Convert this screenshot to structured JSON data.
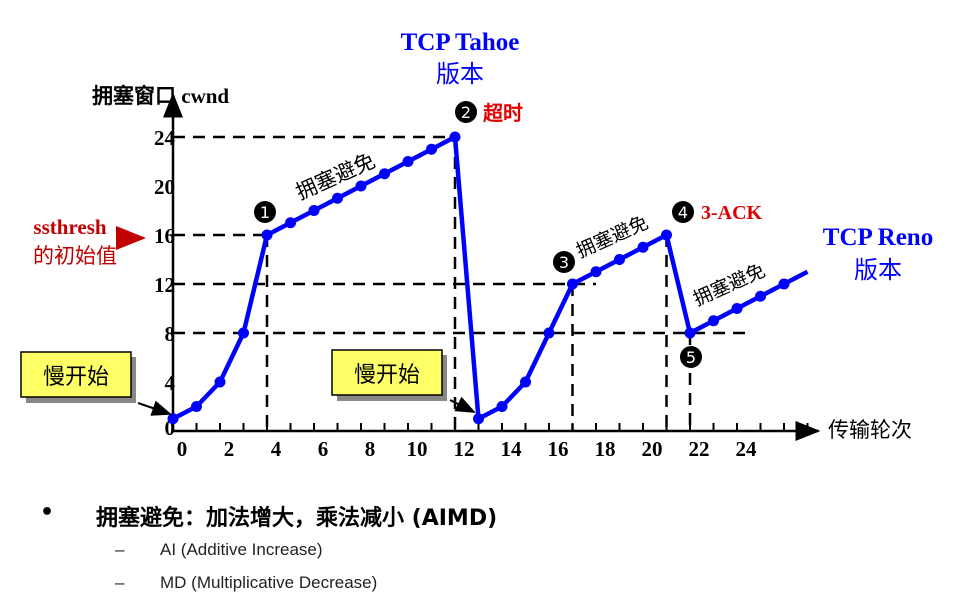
{
  "chart_data": {
    "type": "line",
    "ylabel": "拥塞窗口 cwnd",
    "xlabel": "传输轮次",
    "x_ticks": [
      0,
      2,
      4,
      6,
      8,
      10,
      12,
      14,
      16,
      18,
      20,
      22,
      24
    ],
    "y_ticks": [
      0,
      4,
      8,
      12,
      16,
      20,
      24
    ],
    "xlim": [
      0,
      27
    ],
    "ylim": [
      0,
      24
    ],
    "series": [
      {
        "x": [
          0,
          1,
          2,
          3,
          4,
          5,
          6,
          7,
          8,
          9,
          10,
          11,
          12,
          13,
          14,
          15,
          16,
          17,
          18,
          19,
          20,
          21,
          22,
          23,
          24,
          25,
          26,
          27
        ],
        "y": [
          1,
          2,
          4,
          8,
          16,
          17,
          18,
          19,
          20,
          21,
          22,
          23,
          24,
          1,
          2,
          4,
          8,
          12,
          13,
          14,
          15,
          16,
          8,
          9,
          10,
          11,
          12,
          13
        ],
        "color": "#0000ff"
      }
    ],
    "reference_lines": {
      "horizontal": [
        {
          "y": 24,
          "to_x": 12
        },
        {
          "y": 16,
          "to_x": 4
        },
        {
          "y": 12,
          "to_x": 18
        },
        {
          "y": 8,
          "to_x": 24.5
        }
      ],
      "vertical": [
        {
          "x": 4,
          "from_y": 16
        },
        {
          "x": 12,
          "from_y": 24
        },
        {
          "x": 17,
          "from_y": 12
        },
        {
          "x": 21,
          "from_y": 16
        },
        {
          "x": 22,
          "from_y": 8
        }
      ]
    },
    "annotations": {
      "tahoe": [
        "TCP Tahoe",
        "版本"
      ],
      "reno": [
        "TCP Reno",
        "版本"
      ],
      "ssthresh": [
        "ssthresh",
        "的初始值"
      ],
      "slow_start": "慢开始",
      "congestion_avoidance": "拥塞避免",
      "timeout": "超时",
      "three_ack": "3-ACK",
      "markers": [
        "1",
        "2",
        "3",
        "4",
        "5"
      ]
    },
    "colors": {
      "line": "#0000ff",
      "red": "#e00000",
      "ssthresh": "#c00000",
      "box": "#ffff66"
    }
  },
  "bullets": {
    "main": "拥塞避免：加法增大，乘法减小 (AIMD)",
    "bullet_symbol": "•",
    "dash": "–",
    "subs": [
      "AI (Additive Increase)",
      "MD (Multiplicative Decrease)"
    ]
  }
}
